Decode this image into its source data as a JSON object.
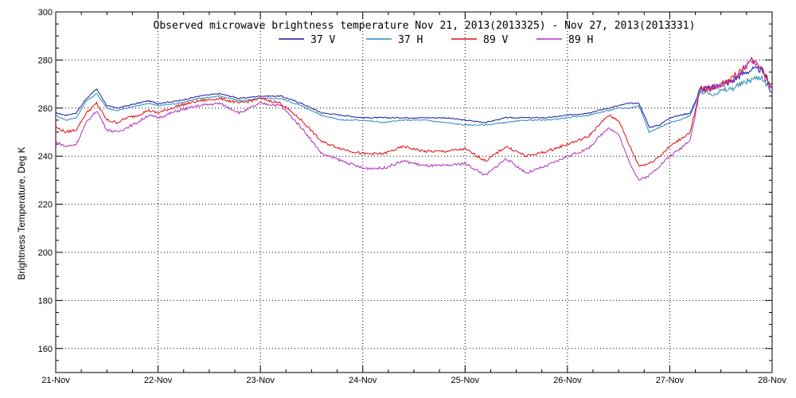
{
  "chart_data": {
    "type": "line",
    "title": "Observed microwave brightness temperature Nov 21, 2013(2013325) - Nov 27, 2013(2013331)",
    "xlabel": "",
    "ylabel": "Brightness Temperature, Deg K",
    "xlim": [
      "2013-11-21",
      "2013-11-28"
    ],
    "ylim": [
      150,
      300
    ],
    "x_ticks": [
      "21-Nov",
      "22-Nov",
      "23-Nov",
      "24-Nov",
      "25-Nov",
      "26-Nov",
      "27-Nov",
      "28-Nov"
    ],
    "y_ticks": [
      160,
      180,
      200,
      220,
      240,
      260,
      280,
      300
    ],
    "grid": true,
    "legend_position": "top-center",
    "series": [
      {
        "name": "37 V",
        "color": "#1a1aa6",
        "x": [
          0.0,
          0.1,
          0.2,
          0.3,
          0.4,
          0.5,
          0.6,
          0.7,
          0.8,
          0.9,
          1.0,
          1.2,
          1.4,
          1.6,
          1.8,
          2.0,
          2.2,
          2.4,
          2.6,
          2.8,
          3.0,
          3.2,
          3.4,
          3.6,
          3.8,
          4.0,
          4.2,
          4.4,
          4.6,
          4.8,
          5.0,
          5.2,
          5.4,
          5.5,
          5.6,
          5.7,
          5.8,
          5.9,
          6.0,
          6.1,
          6.2,
          6.3,
          6.4,
          6.5,
          6.6,
          6.7,
          6.8,
          6.9,
          7.0
        ],
        "y": [
          258,
          257,
          258,
          264,
          268,
          261,
          260,
          261,
          262,
          263,
          262,
          263,
          265,
          266,
          264,
          265,
          265,
          262,
          258,
          257,
          256,
          256,
          256,
          256,
          256,
          255,
          254,
          256,
          256,
          256,
          257,
          258,
          260,
          261,
          262,
          262,
          252,
          253,
          256,
          257,
          258,
          268,
          268,
          270,
          271,
          274,
          276,
          276,
          268
        ]
      },
      {
        "name": "37 H",
        "color": "#2a8ab8",
        "x": [
          0.0,
          0.1,
          0.2,
          0.3,
          0.4,
          0.5,
          0.6,
          0.7,
          0.8,
          0.9,
          1.0,
          1.2,
          1.4,
          1.6,
          1.8,
          2.0,
          2.2,
          2.4,
          2.6,
          2.8,
          3.0,
          3.2,
          3.4,
          3.6,
          3.8,
          4.0,
          4.2,
          4.4,
          4.6,
          4.8,
          5.0,
          5.2,
          5.4,
          5.5,
          5.6,
          5.7,
          5.8,
          5.9,
          6.0,
          6.1,
          6.2,
          6.3,
          6.4,
          6.5,
          6.6,
          6.7,
          6.8,
          6.9,
          7.0
        ],
        "y": [
          257,
          255,
          256,
          263,
          266,
          260,
          259,
          260,
          261,
          262,
          261,
          262,
          264,
          265,
          263,
          264,
          264,
          261,
          257,
          255,
          255,
          254,
          255,
          255,
          254,
          253,
          253,
          254,
          255,
          255,
          256,
          257,
          259,
          260,
          260,
          261,
          250,
          252,
          254,
          255,
          257,
          267,
          266,
          267,
          268,
          270,
          272,
          273,
          266
        ]
      },
      {
        "name": "89 V",
        "color": "#e01010",
        "x": [
          0.0,
          0.1,
          0.2,
          0.3,
          0.4,
          0.5,
          0.6,
          0.7,
          0.8,
          0.9,
          1.0,
          1.2,
          1.4,
          1.6,
          1.8,
          2.0,
          2.2,
          2.4,
          2.6,
          2.8,
          3.0,
          3.2,
          3.4,
          3.6,
          3.8,
          4.0,
          4.2,
          4.4,
          4.6,
          4.8,
          5.0,
          5.2,
          5.4,
          5.5,
          5.6,
          5.7,
          5.8,
          5.9,
          6.0,
          6.1,
          6.2,
          6.3,
          6.4,
          6.5,
          6.6,
          6.7,
          6.8,
          6.9,
          7.0
        ],
        "y": [
          252,
          250,
          251,
          258,
          262,
          255,
          254,
          256,
          257,
          259,
          258,
          261,
          263,
          264,
          262,
          264,
          262,
          255,
          246,
          243,
          241,
          241,
          244,
          242,
          242,
          243,
          238,
          244,
          240,
          242,
          245,
          248,
          257,
          255,
          245,
          236,
          237,
          240,
          244,
          247,
          250,
          268,
          268,
          270,
          272,
          276,
          280,
          277,
          268
        ]
      },
      {
        "name": "89 H",
        "color": "#b030c0",
        "x": [
          0.0,
          0.1,
          0.2,
          0.3,
          0.4,
          0.5,
          0.6,
          0.7,
          0.8,
          0.9,
          1.0,
          1.2,
          1.4,
          1.6,
          1.8,
          2.0,
          2.2,
          2.4,
          2.6,
          2.8,
          3.0,
          3.2,
          3.4,
          3.6,
          3.8,
          4.0,
          4.2,
          4.4,
          4.6,
          4.8,
          5.0,
          5.2,
          5.4,
          5.5,
          5.6,
          5.7,
          5.8,
          5.9,
          6.0,
          6.1,
          6.2,
          6.3,
          6.4,
          6.5,
          6.6,
          6.7,
          6.8,
          6.9,
          7.0
        ],
        "y": [
          246,
          244,
          245,
          254,
          259,
          251,
          250,
          252,
          254,
          257,
          256,
          259,
          261,
          262,
          258,
          262,
          261,
          252,
          241,
          238,
          235,
          235,
          238,
          236,
          236,
          237,
          232,
          239,
          233,
          236,
          240,
          243,
          252,
          249,
          238,
          230,
          232,
          236,
          240,
          243,
          247,
          268,
          268,
          270,
          271,
          275,
          280,
          276,
          266
        ]
      }
    ]
  }
}
